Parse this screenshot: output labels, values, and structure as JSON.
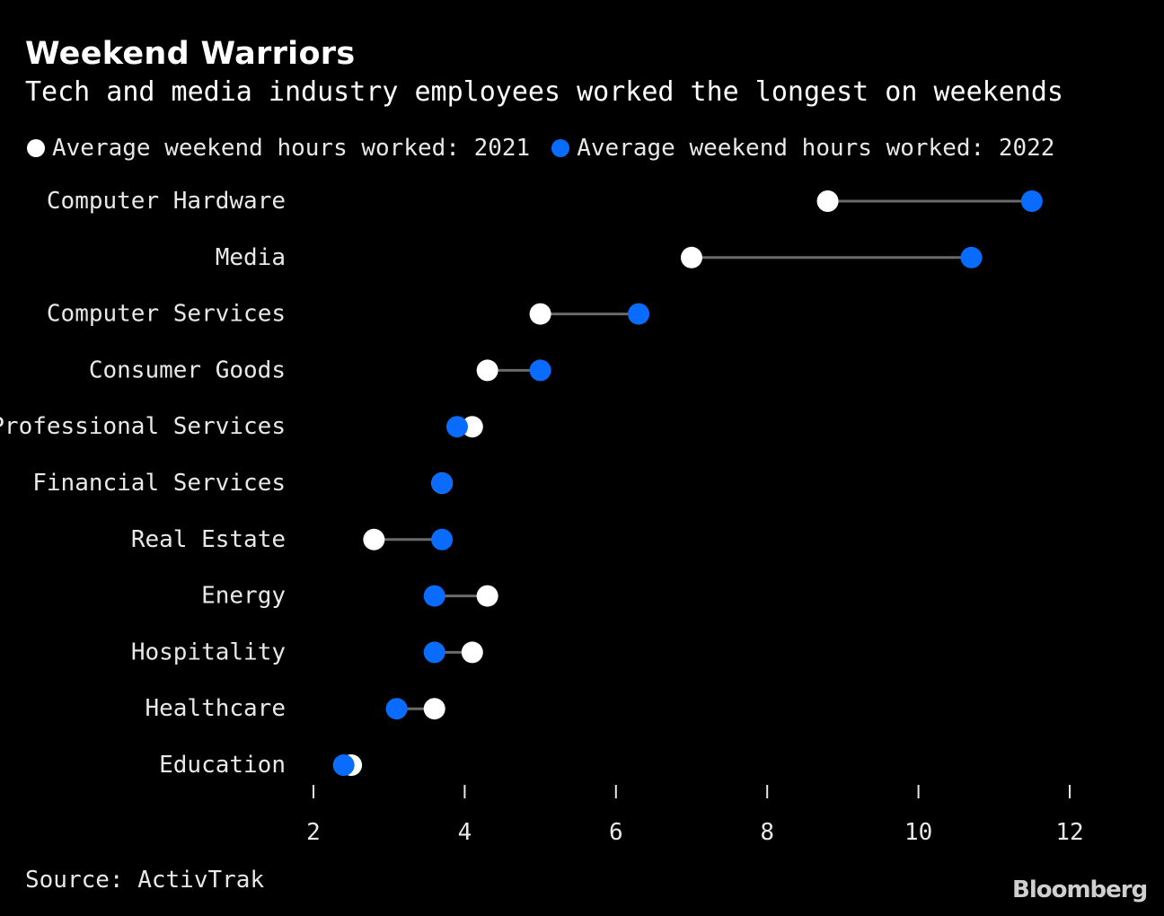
{
  "chart_data": {
    "type": "dumbbell",
    "title": "Weekend Warriors",
    "subtitle": "Tech and media industry employees worked the longest on weekends",
    "series": [
      {
        "name": "Average weekend hours worked: 2021",
        "color": "#ffffff",
        "values": [
          8.8,
          7.0,
          5.0,
          4.3,
          4.1,
          3.7,
          2.8,
          4.3,
          4.1,
          3.6,
          2.5
        ]
      },
      {
        "name": "Average weekend hours worked: 2022",
        "color": "#0a6cff",
        "values": [
          11.5,
          10.7,
          6.3,
          5.0,
          3.9,
          3.7,
          3.7,
          3.6,
          3.6,
          3.1,
          2.4
        ]
      }
    ],
    "categories": [
      "Computer Hardware",
      "Media",
      "Computer Services",
      "Consumer Goods",
      "Professional Services",
      "Financial Services",
      "Real Estate",
      "Energy",
      "Hospitality",
      "Healthcare",
      "Education"
    ],
    "xlim": [
      2,
      12
    ],
    "xticks": [
      2,
      4,
      6,
      8,
      10,
      12
    ],
    "grid": false,
    "legend_position": "top-left"
  },
  "source": "Source: ActivTrak",
  "brand": "Bloomberg"
}
